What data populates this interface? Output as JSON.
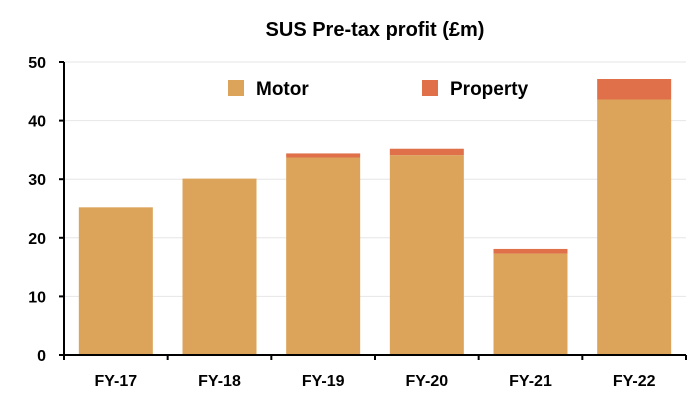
{
  "chart_data": {
    "type": "bar",
    "stacked": true,
    "title": "SUS Pre-tax profit (£m)",
    "xlabel": "",
    "ylabel": "",
    "categories": [
      "FY-17",
      "FY-18",
      "FY-19",
      "FY-20",
      "FY-21",
      "FY-22"
    ],
    "series": [
      {
        "name": "Motor",
        "color": "#dba45a",
        "values": [
          25.2,
          30.1,
          33.7,
          34.1,
          17.3,
          43.6
        ]
      },
      {
        "name": "Property",
        "color": "#e0704a",
        "values": [
          0,
          0,
          0.7,
          1.1,
          0.8,
          3.5
        ]
      }
    ],
    "ylim": [
      0,
      50
    ],
    "yticks": [
      0,
      10,
      20,
      30,
      40,
      50
    ],
    "grid": true,
    "legend_position": "top"
  }
}
